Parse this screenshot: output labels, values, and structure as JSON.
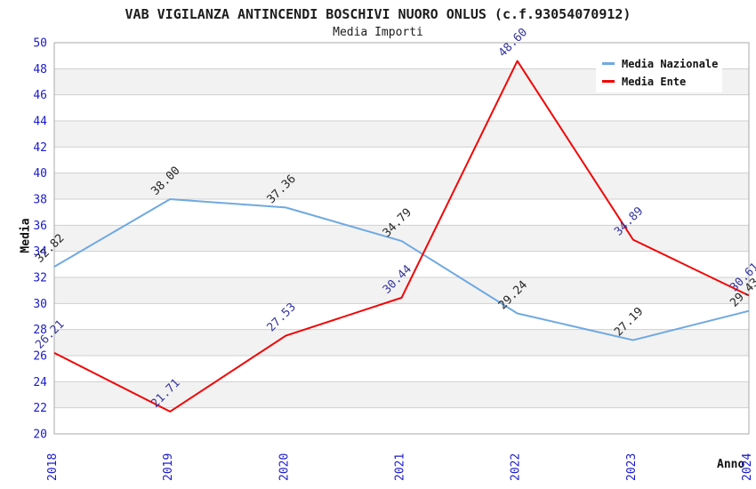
{
  "header": {
    "title": "VAB VIGILANZA ANTINCENDI BOSCHIVI NUORO ONLUS (c.f.93054070912)",
    "subtitle": "Media Importi"
  },
  "legend": {
    "items": [
      {
        "label": "Media Nazionale",
        "color": "#6FA9E1"
      },
      {
        "label": "Media Ente",
        "color": "#F20505"
      }
    ]
  },
  "axes": {
    "y_title": "Media",
    "x_title": "Anno",
    "tick_color": "#1A1ACD",
    "grid_color": "#D0D0D0",
    "border_color": "#A9A9A9"
  },
  "chart_data": {
    "type": "line",
    "title": "VAB VIGILANZA ANTINCENDI BOSCHIVI NUORO ONLUS (c.f.93054070912)",
    "subtitle": "Media Importi",
    "xlabel": "Anno",
    "ylabel": "Media",
    "x": [
      2018,
      2019,
      2020,
      2021,
      2022,
      2023,
      2024
    ],
    "series": [
      {
        "name": "Media Nazionale",
        "color": "#6FA9E1",
        "label_color": "#262626",
        "values": [
          32.82,
          38.0,
          37.36,
          34.79,
          29.24,
          27.19,
          29.43
        ]
      },
      {
        "name": "Media Ente",
        "color": "#F20505",
        "label_color": "#34349E",
        "values": [
          26.21,
          21.71,
          27.53,
          30.44,
          48.6,
          34.89,
          30.61
        ]
      }
    ],
    "ylim": [
      20,
      50
    ],
    "ytick_step": 2,
    "grid": true,
    "band_colors": [
      "#FFFFFF",
      "#F2F2F2"
    ],
    "legend_position": "top-right"
  }
}
